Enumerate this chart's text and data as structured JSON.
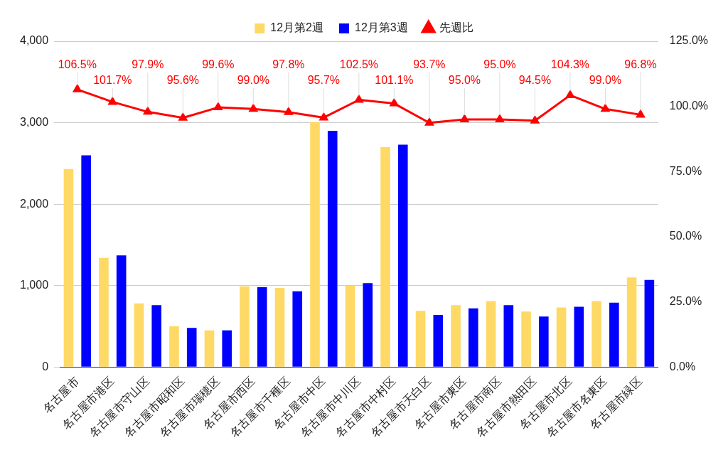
{
  "chart_data": {
    "type": "bar",
    "categories": [
      "名古屋市",
      "名古屋市港区",
      "名古屋市守山区",
      "名古屋市昭和区",
      "名古屋市瑞穂区",
      "名古屋市西区",
      "名古屋市千種区",
      "名古屋市中区",
      "名古屋市中川区",
      "名古屋市中村区",
      "名古屋市天白区",
      "名古屋市東区",
      "名古屋市南区",
      "名古屋市熱田区",
      "名古屋市北区",
      "名古屋市名東区",
      "名古屋市緑区"
    ],
    "series": [
      {
        "name": "12月第2週",
        "color": "#ffd966",
        "values": [
          2430,
          1340,
          780,
          500,
          450,
          990,
          970,
          3010,
          1000,
          2700,
          690,
          760,
          810,
          680,
          730,
          810,
          1100
        ]
      },
      {
        "name": "12月第3週",
        "color": "#0000ff",
        "values": [
          2600,
          1370,
          760,
          480,
          450,
          980,
          930,
          2900,
          1030,
          2730,
          640,
          720,
          760,
          620,
          740,
          790,
          1070
        ]
      },
      {
        "name": "先週比",
        "type": "line",
        "axis": "y2",
        "color": "#ff0000",
        "marker": "triangle",
        "values": [
          106.5,
          101.7,
          97.9,
          95.6,
          99.6,
          99.0,
          97.8,
          95.7,
          102.5,
          101.1,
          93.7,
          95.0,
          95.0,
          94.5,
          104.3,
          99.0,
          96.8
        ],
        "value_labels": [
          "106.5%",
          "101.7%",
          "97.9%",
          "95.6%",
          "99.6%",
          "99.0%",
          "97.8%",
          "95.7%",
          "102.5%",
          "101.1%",
          "93.7%",
          "95.0%",
          "95.0%",
          "94.5%",
          "104.3%",
          "99.0%",
          "96.8%"
        ]
      }
    ],
    "ylim": [
      0,
      4000
    ],
    "yticks": [
      0,
      {
        "value": 1000,
        "label": "1,000"
      },
      {
        "value": 2000,
        "label": "2,000"
      },
      {
        "value": 3000,
        "label": "3,000"
      },
      {
        "value": 4000,
        "label": "4,000"
      }
    ],
    "y2lim": [
      0,
      125
    ],
    "y2ticks": [
      {
        "value": 0,
        "label": "0.0%"
      },
      {
        "value": 25,
        "label": "25.0%"
      },
      {
        "value": 50,
        "label": "50.0%"
      },
      {
        "value": 75,
        "label": "75.0%"
      },
      {
        "value": 100,
        "label": "100.0%"
      },
      {
        "value": 125,
        "label": "125.0%"
      }
    ],
    "grid": "y",
    "legend": "top"
  }
}
